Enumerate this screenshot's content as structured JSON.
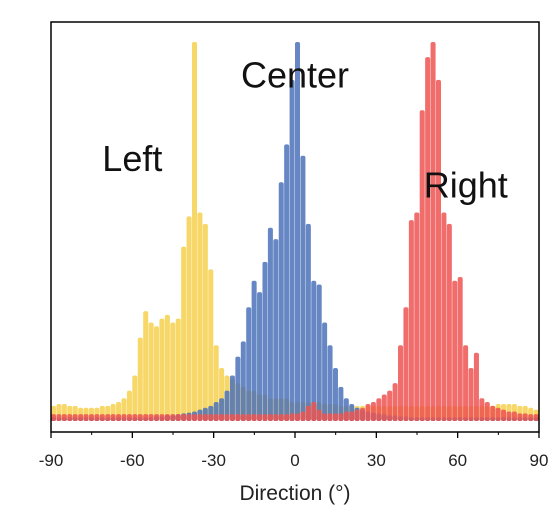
{
  "chart_data": {
    "type": "bar",
    "xlabel": "Direction (°)",
    "ylabel": "",
    "xlim": [
      -90,
      90
    ],
    "ylim": [
      0,
      1.0
    ],
    "xticks": [
      -90,
      -60,
      -30,
      0,
      30,
      60,
      90
    ],
    "xtick_labels": [
      "-90",
      "-60",
      "-30",
      "0",
      "30",
      "60",
      "90"
    ],
    "grid": false,
    "legend": "none",
    "annotations": [
      {
        "text": "Left",
        "x": -60,
        "y": 0.66
      },
      {
        "text": "Center",
        "x": 0,
        "y": 0.88
      },
      {
        "text": "Right",
        "x": 63,
        "y": 0.59
      }
    ],
    "series": [
      {
        "name": "Left",
        "color": "#f5d04c",
        "x": [
          -90,
          -88,
          -86,
          -84,
          -82,
          -80,
          -78,
          -76,
          -74,
          -72,
          -70,
          -68,
          -66,
          -64,
          -62,
          -60,
          -58,
          -56,
          -54,
          -52,
          -50,
          -48,
          -46,
          -44,
          -42,
          -40,
          -38,
          -36,
          -34,
          -32,
          -30,
          -28,
          -26,
          -24,
          -22,
          -20,
          -18,
          -16,
          -14,
          -12,
          -10,
          -8,
          -6,
          -4,
          -2,
          0,
          2,
          4,
          6,
          8,
          10,
          12,
          14,
          16,
          18,
          20,
          22,
          24,
          26,
          28,
          30,
          32,
          34,
          36,
          38,
          40,
          42,
          44,
          46,
          48,
          50,
          52,
          54,
          56,
          58,
          60,
          62,
          64,
          66,
          68,
          70,
          72,
          74,
          76,
          78,
          80,
          82,
          84,
          86,
          88
        ],
        "values": [
          0.04,
          0.045,
          0.045,
          0.04,
          0.04,
          0.035,
          0.035,
          0.035,
          0.035,
          0.04,
          0.04,
          0.045,
          0.05,
          0.06,
          0.08,
          0.12,
          0.22,
          0.29,
          0.26,
          0.25,
          0.27,
          0.28,
          0.26,
          0.27,
          0.46,
          0.54,
          1.0,
          0.55,
          0.52,
          0.4,
          0.2,
          0.14,
          0.12,
          0.11,
          0.1,
          0.09,
          0.08,
          0.08,
          0.07,
          0.07,
          0.06,
          0.06,
          0.06,
          0.06,
          0.05,
          0.05,
          0.05,
          0.05,
          0.05,
          0.05,
          0.045,
          0.045,
          0.045,
          0.04,
          0.04,
          0.04,
          0.04,
          0.04,
          0.04,
          0.04,
          0.04,
          0.04,
          0.04,
          0.04,
          0.04,
          0.04,
          0.04,
          0.04,
          0.04,
          0.04,
          0.04,
          0.04,
          0.04,
          0.04,
          0.04,
          0.04,
          0.04,
          0.04,
          0.04,
          0.04,
          0.04,
          0.04,
          0.045,
          0.045,
          0.045,
          0.045,
          0.04,
          0.04,
          0.035,
          0.03
        ]
      },
      {
        "name": "Center",
        "color": "#4b72b8",
        "x": [
          -90,
          -88,
          -86,
          -84,
          -82,
          -80,
          -78,
          -76,
          -74,
          -72,
          -70,
          -68,
          -66,
          -64,
          -62,
          -60,
          -58,
          -56,
          -54,
          -52,
          -50,
          -48,
          -46,
          -44,
          -42,
          -40,
          -38,
          -36,
          -34,
          -32,
          -30,
          -28,
          -26,
          -24,
          -22,
          -20,
          -18,
          -16,
          -14,
          -12,
          -10,
          -8,
          -6,
          -4,
          -2,
          0,
          2,
          4,
          6,
          8,
          10,
          12,
          14,
          16,
          18,
          20,
          22,
          24,
          26,
          28,
          30,
          32,
          34,
          36,
          38,
          40,
          42,
          44,
          46,
          48,
          50,
          52,
          54,
          56,
          58,
          60,
          62,
          64,
          66,
          68,
          70,
          72,
          74,
          76,
          78,
          80,
          82,
          84,
          86,
          88
        ],
        "values": [
          0.01,
          0.01,
          0.01,
          0.01,
          0.01,
          0.01,
          0.01,
          0.01,
          0.01,
          0.01,
          0.01,
          0.01,
          0.01,
          0.01,
          0.01,
          0.01,
          0.01,
          0.01,
          0.01,
          0.012,
          0.012,
          0.015,
          0.015,
          0.018,
          0.02,
          0.022,
          0.025,
          0.03,
          0.035,
          0.04,
          0.05,
          0.06,
          0.08,
          0.12,
          0.17,
          0.21,
          0.3,
          0.37,
          0.34,
          0.42,
          0.51,
          0.48,
          0.63,
          0.73,
          0.9,
          1.0,
          0.7,
          0.52,
          0.37,
          0.36,
          0.26,
          0.2,
          0.14,
          0.09,
          0.06,
          0.045,
          0.035,
          0.03,
          0.025,
          0.022,
          0.02,
          0.018,
          0.015,
          0.015,
          0.012,
          0.012,
          0.01,
          0.01,
          0.01,
          0.01,
          0.01,
          0.01,
          0.01,
          0.01,
          0.01,
          0.01,
          0.01,
          0.01,
          0.01,
          0.01,
          0.01,
          0.01,
          0.01,
          0.01,
          0.01,
          0.01,
          0.01,
          0.01,
          0.01,
          0.01
        ]
      },
      {
        "name": "Right",
        "color": "#ed5451",
        "x": [
          -90,
          -88,
          -86,
          -84,
          -82,
          -80,
          -78,
          -76,
          -74,
          -72,
          -70,
          -68,
          -66,
          -64,
          -62,
          -60,
          -58,
          -56,
          -54,
          -52,
          -50,
          -48,
          -46,
          -44,
          -42,
          -40,
          -38,
          -36,
          -34,
          -32,
          -30,
          -28,
          -26,
          -24,
          -22,
          -20,
          -18,
          -16,
          -14,
          -12,
          -10,
          -8,
          -6,
          -4,
          -2,
          0,
          2,
          4,
          6,
          8,
          10,
          12,
          14,
          16,
          18,
          20,
          22,
          24,
          26,
          28,
          30,
          32,
          34,
          36,
          38,
          40,
          42,
          44,
          46,
          48,
          50,
          52,
          54,
          56,
          58,
          60,
          62,
          64,
          66,
          68,
          70,
          72,
          74,
          76,
          78,
          80,
          82,
          84,
          86,
          88
        ],
        "values": [
          0.018,
          0.018,
          0.018,
          0.018,
          0.018,
          0.018,
          0.018,
          0.018,
          0.018,
          0.018,
          0.018,
          0.018,
          0.018,
          0.018,
          0.018,
          0.018,
          0.018,
          0.018,
          0.018,
          0.018,
          0.018,
          0.018,
          0.018,
          0.018,
          0.018,
          0.018,
          0.018,
          0.018,
          0.018,
          0.018,
          0.018,
          0.018,
          0.018,
          0.018,
          0.018,
          0.018,
          0.018,
          0.018,
          0.018,
          0.018,
          0.018,
          0.018,
          0.018,
          0.018,
          0.02,
          0.02,
          0.025,
          0.04,
          0.05,
          0.03,
          0.02,
          0.02,
          0.02,
          0.02,
          0.025,
          0.025,
          0.03,
          0.035,
          0.045,
          0.05,
          0.06,
          0.07,
          0.08,
          0.1,
          0.2,
          0.3,
          0.53,
          0.55,
          0.82,
          0.96,
          1.0,
          0.9,
          0.55,
          0.52,
          0.37,
          0.38,
          0.2,
          0.14,
          0.18,
          0.06,
          0.05,
          0.04,
          0.035,
          0.03,
          0.025,
          0.025,
          0.02,
          0.02,
          0.018,
          0.018
        ]
      }
    ]
  }
}
